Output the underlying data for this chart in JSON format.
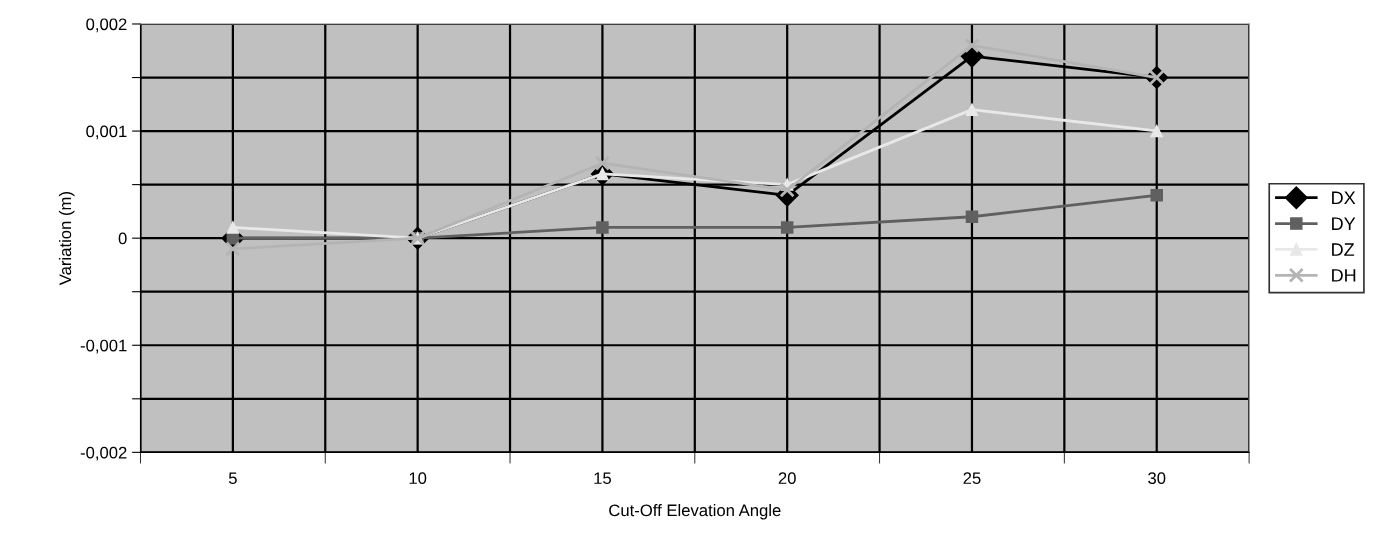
{
  "chart_data": {
    "type": "line",
    "xlabel": "Cut-Off Elevation Angle",
    "ylabel": "Variation (m)",
    "categories": [
      "5",
      "10",
      "15",
      "20",
      "25",
      "30"
    ],
    "series": [
      {
        "name": "DX",
        "color": "#000000",
        "marker": "diamond",
        "values": [
          0.0,
          0.0,
          0.0006,
          0.0004,
          0.0017,
          0.0015
        ]
      },
      {
        "name": "DY",
        "color": "#606060",
        "marker": "square",
        "values": [
          0.0,
          0.0,
          0.0001,
          0.0001,
          0.0002,
          0.0004
        ]
      },
      {
        "name": "DZ",
        "color": "#e8e8e8",
        "marker": "triangle",
        "values": [
          0.0001,
          0.0,
          0.0006,
          0.0005,
          0.0012,
          0.001
        ]
      },
      {
        "name": "DH",
        "color": "#b4b4b4",
        "marker": "cross",
        "values": [
          -0.0001,
          0.0,
          0.0007,
          0.00045,
          0.0018,
          0.0015
        ]
      }
    ],
    "ylim": [
      -0.002,
      0.002
    ],
    "yticks": [
      {
        "value": -0.002,
        "label": "-0,002"
      },
      {
        "value": -0.0015,
        "label": null
      },
      {
        "value": -0.001,
        "label": "-0,001"
      },
      {
        "value": -0.0005,
        "label": null
      },
      {
        "value": 0,
        "label": "0"
      },
      {
        "value": 0.0005,
        "label": null
      },
      {
        "value": 0.001,
        "label": "0,001"
      },
      {
        "value": 0.0015,
        "label": null
      },
      {
        "value": 0.002,
        "label": "0,002"
      }
    ],
    "grid": true,
    "legend": "right",
    "line_style": "solid"
  }
}
